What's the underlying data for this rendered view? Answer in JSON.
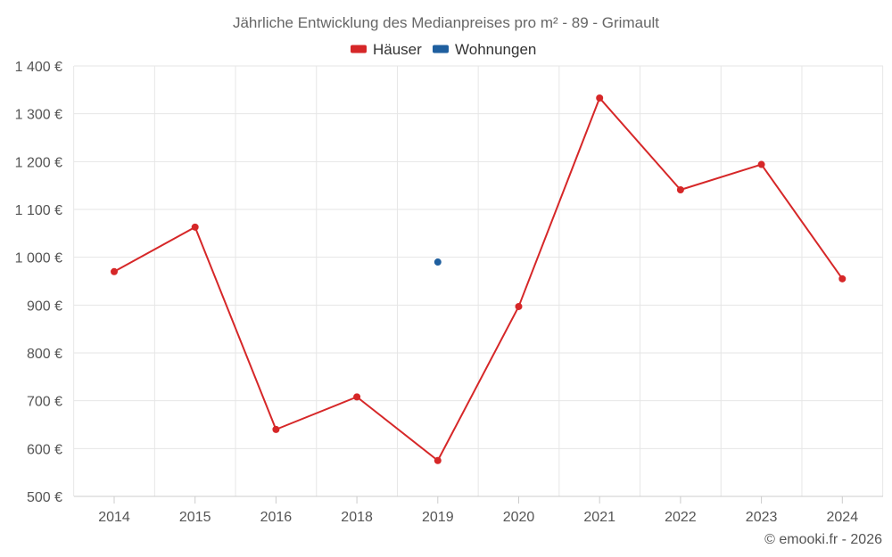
{
  "chart_data": {
    "type": "line",
    "title": "Jährliche Entwicklung des Medianpreises pro m² - 89 - Grimault",
    "categories": [
      "2014",
      "2015",
      "2016",
      "2018",
      "2019",
      "2020",
      "2021",
      "2022",
      "2023",
      "2024"
    ],
    "y_ticks": [
      "500 €",
      "600 €",
      "700 €",
      "800 €",
      "900 €",
      "1 000 €",
      "1 100 €",
      "1 200 €",
      "1 300 €",
      "1 400 €"
    ],
    "ylim": [
      500,
      1400
    ],
    "grid": true,
    "legend_position": "top-center",
    "series": [
      {
        "name": "Häuser",
        "color": "#d62728",
        "values": [
          970,
          1063,
          640,
          708,
          575,
          897,
          1333,
          1141,
          1194,
          955
        ]
      },
      {
        "name": "Wohnungen",
        "color": "#1f5f9f",
        "values": [
          null,
          null,
          null,
          null,
          990,
          null,
          null,
          null,
          null,
          null
        ]
      }
    ]
  },
  "credit": "© emooki.fr - 2026"
}
